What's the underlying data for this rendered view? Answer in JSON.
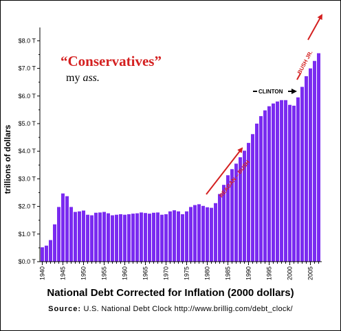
{
  "chart_data": {
    "type": "bar",
    "title": "National Debt Corrected for Inflation (2000 dollars)",
    "ylabel": "trillions of dollars",
    "xlabel": "",
    "ylim": [
      0,
      8.7
    ],
    "y_ticks": [
      0,
      1,
      2,
      3,
      4,
      5,
      6,
      7,
      8
    ],
    "y_tick_labels": [
      "$0.0 T",
      "$1.0 T",
      "$2.0 T",
      "$3.0 T",
      "$4.0 T",
      "$5.0 T",
      "$6.0 T",
      "$7.0 T",
      "$8.0 T"
    ],
    "x_tick_labels": [
      "1940",
      "1945",
      "1950",
      "1955",
      "1960",
      "1965",
      "1970",
      "1975",
      "1980",
      "1985",
      "1990",
      "1995",
      "2000",
      "2005"
    ],
    "grid": false,
    "bar_color": "#7a2bf0",
    "categories": [
      1940,
      1941,
      1942,
      1943,
      1944,
      1945,
      1946,
      1947,
      1948,
      1949,
      1950,
      1951,
      1952,
      1953,
      1954,
      1955,
      1956,
      1957,
      1958,
      1959,
      1960,
      1961,
      1962,
      1963,
      1964,
      1965,
      1966,
      1967,
      1968,
      1969,
      1970,
      1971,
      1972,
      1973,
      1974,
      1975,
      1976,
      1977,
      1978,
      1979,
      1980,
      1981,
      1982,
      1983,
      1984,
      1985,
      1986,
      1987,
      1988,
      1989,
      1990,
      1991,
      1992,
      1993,
      1994,
      1995,
      1996,
      1997,
      1998,
      1999,
      2000,
      2001,
      2002,
      2003,
      2004,
      2005,
      2006,
      2007
    ],
    "values": [
      0.52,
      0.58,
      0.78,
      1.35,
      1.98,
      2.47,
      2.37,
      1.98,
      1.8,
      1.82,
      1.85,
      1.7,
      1.68,
      1.77,
      1.78,
      1.8,
      1.75,
      1.68,
      1.7,
      1.72,
      1.7,
      1.72,
      1.74,
      1.75,
      1.78,
      1.76,
      1.74,
      1.77,
      1.78,
      1.7,
      1.72,
      1.82,
      1.86,
      1.82,
      1.72,
      1.82,
      1.98,
      2.05,
      2.08,
      2.02,
      1.97,
      1.95,
      2.12,
      2.45,
      2.78,
      3.13,
      3.35,
      3.55,
      3.78,
      4.02,
      4.3,
      4.62,
      5.0,
      5.27,
      5.48,
      5.63,
      5.73,
      5.8,
      5.85,
      5.85,
      5.68,
      5.65,
      5.95,
      6.33,
      6.72,
      7.0,
      7.27,
      7.55
    ],
    "annotations": {
      "headline": "“Conservatives”",
      "subline_prefix": "my ",
      "subline_emph": "ass.",
      "reagan_bush": "REAGAN – BUSH",
      "clinton": "CLINTON",
      "bush_jr": "BUSH JR."
    },
    "annotation_color": "#d42020"
  },
  "source": {
    "label": "Source:",
    "text": "U.S. National Debt Clock   http://www.brillig.com/debt_clock/"
  }
}
